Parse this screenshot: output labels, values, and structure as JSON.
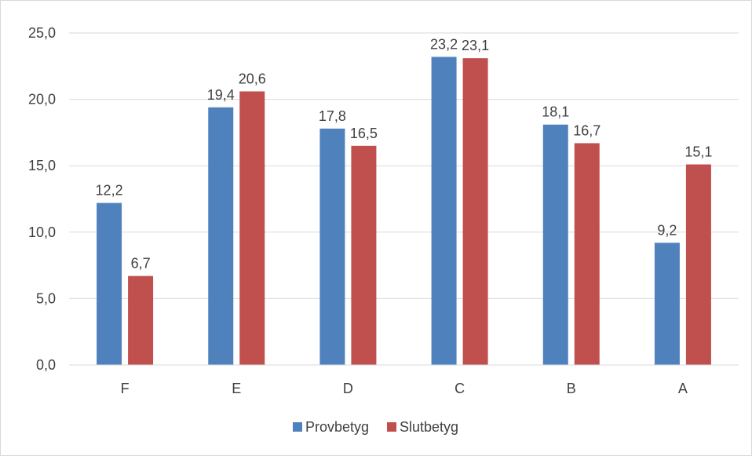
{
  "chart_data": {
    "type": "bar",
    "title": "",
    "xlabel": "",
    "ylabel": "",
    "categories": [
      "F",
      "E",
      "D",
      "C",
      "B",
      "A"
    ],
    "series": [
      {
        "name": "Provbetyg",
        "color": "#4f81bd",
        "values": [
          12.2,
          19.4,
          17.8,
          23.2,
          18.1,
          9.2
        ],
        "labels": [
          "12,2",
          "19,4",
          "17,8",
          "23,2",
          "18,1",
          "9,2"
        ]
      },
      {
        "name": "Slutbetyg",
        "color": "#c0504d",
        "values": [
          6.7,
          20.6,
          16.5,
          23.1,
          16.7,
          15.1
        ],
        "labels": [
          "6,7",
          "20,6",
          "16,5",
          "23,1",
          "16,7",
          "15,1"
        ]
      }
    ],
    "ylim": [
      0,
      25
    ],
    "yticks": [
      0,
      5,
      10,
      15,
      20,
      25
    ],
    "ytick_labels": [
      "0,0",
      "5,0",
      "10,0",
      "15,0",
      "20,0",
      "25,0"
    ],
    "grid": true,
    "legend_position": "bottom-center"
  }
}
